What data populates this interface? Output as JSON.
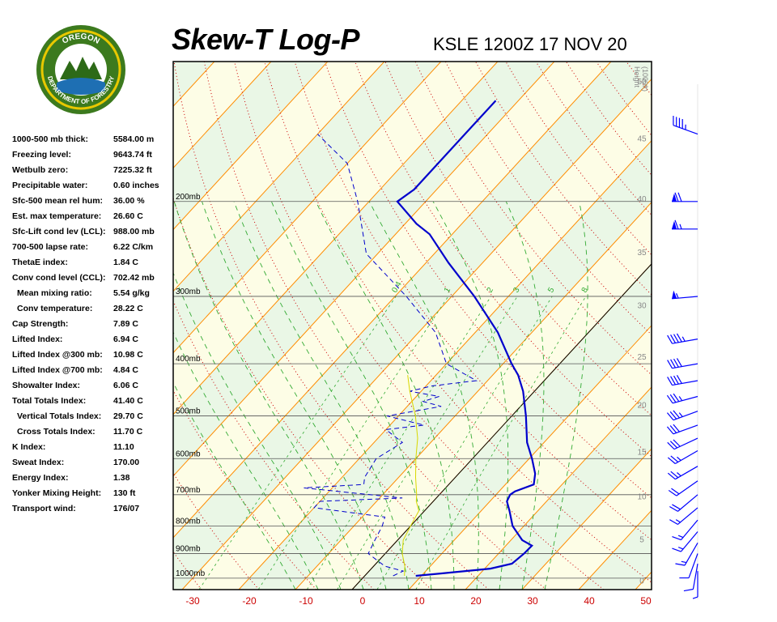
{
  "header": {
    "title": "Skew-T Log-P",
    "station": "KSLE 1200Z 17 NOV 20"
  },
  "logo": {
    "top_text": "OREGON",
    "bottom_text": "DEPARTMENT OF FORESTRY"
  },
  "indices": [
    {
      "label": "1000-500 mb thick:",
      "value": "5584.00 m",
      "indent": false
    },
    {
      "label": "Freezing level:",
      "value": "9643.74 ft",
      "indent": false
    },
    {
      "label": "Wetbulb zero:",
      "value": "7225.32 ft",
      "indent": false
    },
    {
      "label": "Precipitable water:",
      "value": "0.60 inches",
      "indent": false
    },
    {
      "label": "Sfc-500 mean rel hum:",
      "value": "36.00 %",
      "indent": false
    },
    {
      "label": "Est. max temperature:",
      "value": "26.60 C",
      "indent": false
    },
    {
      "label": "Sfc-Lift cond lev (LCL):",
      "value": "988.00 mb",
      "indent": false
    },
    {
      "label": "700-500 lapse rate:",
      "value": "6.22 C/km",
      "indent": false
    },
    {
      "label": "ThetaE index:",
      "value": "1.84 C",
      "indent": false
    },
    {
      "label": "Conv cond level (CCL):",
      "value": "702.42 mb",
      "indent": false
    },
    {
      "label": "Mean mixing ratio:",
      "value": "5.54 g/kg",
      "indent": true
    },
    {
      "label": "Conv temperature:",
      "value": "28.22 C",
      "indent": true
    },
    {
      "label": "Cap Strength:",
      "value": "7.89 C",
      "indent": false
    },
    {
      "label": "Lifted Index:",
      "value": "6.94 C",
      "indent": false
    },
    {
      "label": "Lifted Index @300 mb:",
      "value": "10.98 C",
      "indent": false
    },
    {
      "label": "Lifted Index @700 mb:",
      "value": "4.84 C",
      "indent": false
    },
    {
      "label": "Showalter Index:",
      "value": "6.06 C",
      "indent": false
    },
    {
      "label": "Total Totals Index:",
      "value": "41.40 C",
      "indent": false
    },
    {
      "label": "Vertical Totals Index:",
      "value": "29.70 C",
      "indent": true
    },
    {
      "label": "Cross Totals Index:",
      "value": "11.70 C",
      "indent": true
    },
    {
      "label": "K Index:",
      "value": "11.10",
      "indent": false
    },
    {
      "label": "Sweat Index:",
      "value": "170.00",
      "indent": false
    },
    {
      "label": "Energy Index:",
      "value": "1.38",
      "indent": false
    },
    {
      "label": "Yonker Mixing Height:",
      "value": "130 ft",
      "indent": false
    },
    {
      "label": "Transport wind:",
      "value": "176/07",
      "indent": false
    }
  ],
  "colors": {
    "temperature": "#0000cc",
    "dewpoint": "#0000cc",
    "wetbulb": "#d8d800",
    "isotherm": "#ff8c00",
    "dry_adiabat": "#cc0000",
    "moist_adiabat": "#33aa33",
    "mixing_ratio": "#33aa33",
    "band_green": "#eaf7e6",
    "band_yellow": "#fdfde6",
    "temp_tick_label": "#cc0000",
    "wind_barb": "#0000ff"
  },
  "chart_data": {
    "type": "line",
    "title": "Skew-T Log-P",
    "x_axis": {
      "ticks": [
        -30,
        -20,
        -10,
        0,
        10,
        20,
        30,
        40,
        50
      ],
      "tick_labels": [
        "-30",
        "-20",
        "-10",
        "0",
        "10",
        "20",
        "30",
        "40",
        "50"
      ],
      "range": [
        -32,
        48
      ]
    },
    "pressure_levels": [
      {
        "p": 200,
        "label": "200mb"
      },
      {
        "p": 300,
        "label": "300mb"
      },
      {
        "p": 400,
        "label": "400mb"
      },
      {
        "p": 500,
        "label": "500mb"
      },
      {
        "p": 600,
        "label": "600mb"
      },
      {
        "p": 700,
        "label": "700mb"
      },
      {
        "p": 800,
        "label": "800mb"
      },
      {
        "p": 900,
        "label": "900mb"
      },
      {
        "p": 1000,
        "label": "1000mb"
      }
    ],
    "height_axis": {
      "label_lines": [
        "Height",
        "(1000ft)"
      ],
      "ticks": [
        {
          "label": "0",
          "p": 1012
        },
        {
          "label": "5",
          "p": 849
        },
        {
          "label": "10",
          "p": 707
        },
        {
          "label": "15",
          "p": 584
        },
        {
          "label": "20",
          "p": 478
        },
        {
          "label": "25",
          "p": 389
        },
        {
          "label": "30",
          "p": 312
        },
        {
          "label": "35",
          "p": 249
        },
        {
          "label": "40",
          "p": 198
        },
        {
          "label": "45",
          "p": 153
        },
        {
          "label": "50",
          "p": 120
        }
      ]
    },
    "mixing_ratio_labels": [
      "0.4",
      "1",
      "2",
      "3",
      "5",
      "8"
    ],
    "series": [
      {
        "name": "",
        "style": "solid",
        "points": [
          {
            "p": 990,
            "t": 9
          },
          {
            "p": 980,
            "t": 13
          },
          {
            "p": 960,
            "t": 21
          },
          {
            "p": 940,
            "t": 24
          },
          {
            "p": 900,
            "t": 24.5
          },
          {
            "p": 870,
            "t": 24.6
          },
          {
            "p": 850,
            "t": 22
          },
          {
            "p": 800,
            "t": 18
          },
          {
            "p": 750,
            "t": 15
          },
          {
            "p": 720,
            "t": 13
          },
          {
            "p": 700,
            "t": 12.5
          },
          {
            "p": 690,
            "t": 12.8
          },
          {
            "p": 670,
            "t": 15
          },
          {
            "p": 640,
            "t": 13.5
          },
          {
            "p": 600,
            "t": 10.5
          },
          {
            "p": 560,
            "t": 7
          },
          {
            "p": 500,
            "t": 2.5
          },
          {
            "p": 450,
            "t": -2
          },
          {
            "p": 420,
            "t": -5.5
          },
          {
            "p": 400,
            "t": -8.5
          },
          {
            "p": 350,
            "t": -16
          },
          {
            "p": 300,
            "t": -26
          },
          {
            "p": 260,
            "t": -36
          },
          {
            "p": 230,
            "t": -44
          },
          {
            "p": 220,
            "t": -48
          },
          {
            "p": 200,
            "t": -55
          },
          {
            "p": 190,
            "t": -54
          },
          {
            "p": 150,
            "t": -54
          },
          {
            "p": 130,
            "t": -54
          }
        ]
      },
      {
        "name": "",
        "style": "dashed",
        "points": [
          {
            "p": 990,
            "t": 5
          },
          {
            "p": 970,
            "t": 6
          },
          {
            "p": 950,
            "t": 2
          },
          {
            "p": 930,
            "t": 0
          },
          {
            "p": 900,
            "t": -3
          },
          {
            "p": 850,
            "t": -4
          },
          {
            "p": 800,
            "t": -5
          },
          {
            "p": 770,
            "t": -6
          },
          {
            "p": 740,
            "t": -20
          },
          {
            "p": 720,
            "t": -20
          },
          {
            "p": 710,
            "t": -6
          },
          {
            "p": 680,
            "t": -25
          },
          {
            "p": 670,
            "t": -15
          },
          {
            "p": 650,
            "t": -16
          },
          {
            "p": 600,
            "t": -17
          },
          {
            "p": 560,
            "t": -15
          },
          {
            "p": 530,
            "t": -20
          },
          {
            "p": 520,
            "t": -14
          },
          {
            "p": 500,
            "t": -22
          },
          {
            "p": 480,
            "t": -14
          },
          {
            "p": 470,
            "t": -18
          },
          {
            "p": 460,
            "t": -16
          },
          {
            "p": 450,
            "t": -22
          },
          {
            "p": 440,
            "t": -19
          },
          {
            "p": 430,
            "t": -12
          },
          {
            "p": 400,
            "t": -20
          },
          {
            "p": 350,
            "t": -27
          },
          {
            "p": 300,
            "t": -38
          },
          {
            "p": 250,
            "t": -52
          },
          {
            "p": 200,
            "t": -62
          },
          {
            "p": 170,
            "t": -70
          },
          {
            "p": 150,
            "t": -80
          }
        ]
      },
      {
        "name": "",
        "style": "thin",
        "points": [
          {
            "p": 990,
            "t": 7
          },
          {
            "p": 950,
            "t": 5.5
          },
          {
            "p": 900,
            "t": 3
          },
          {
            "p": 850,
            "t": 1
          },
          {
            "p": 800,
            "t": 0
          },
          {
            "p": 750,
            "t": -1
          },
          {
            "p": 720,
            "t": -3
          },
          {
            "p": 700,
            "t": -4
          },
          {
            "p": 650,
            "t": -7
          },
          {
            "p": 600,
            "t": -10
          },
          {
            "p": 550,
            "t": -13
          },
          {
            "p": 500,
            "t": -17
          },
          {
            "p": 450,
            "t": -22
          },
          {
            "p": 420,
            "t": -25
          }
        ]
      }
    ],
    "wind_barbs": [
      {
        "p": 150,
        "dir": 290,
        "kt": 45
      },
      {
        "p": 200,
        "dir": 270,
        "kt": 70
      },
      {
        "p": 225,
        "dir": 270,
        "kt": 65
      },
      {
        "p": 300,
        "dir": 265,
        "kt": 55
      },
      {
        "p": 360,
        "dir": 260,
        "kt": 45
      },
      {
        "p": 400,
        "dir": 260,
        "kt": 40
      },
      {
        "p": 430,
        "dir": 260,
        "kt": 40
      },
      {
        "p": 460,
        "dir": 255,
        "kt": 35
      },
      {
        "p": 490,
        "dir": 250,
        "kt": 35
      },
      {
        "p": 520,
        "dir": 250,
        "kt": 30
      },
      {
        "p": 550,
        "dir": 245,
        "kt": 30
      },
      {
        "p": 580,
        "dir": 240,
        "kt": 25
      },
      {
        "p": 620,
        "dir": 240,
        "kt": 25
      },
      {
        "p": 660,
        "dir": 235,
        "kt": 20
      },
      {
        "p": 700,
        "dir": 230,
        "kt": 20
      },
      {
        "p": 740,
        "dir": 230,
        "kt": 15
      },
      {
        "p": 780,
        "dir": 220,
        "kt": 15
      },
      {
        "p": 820,
        "dir": 220,
        "kt": 15
      },
      {
        "p": 860,
        "dir": 210,
        "kt": 15
      },
      {
        "p": 900,
        "dir": 200,
        "kt": 10
      },
      {
        "p": 940,
        "dir": 190,
        "kt": 10
      },
      {
        "p": 970,
        "dir": 180,
        "kt": 5
      }
    ]
  }
}
